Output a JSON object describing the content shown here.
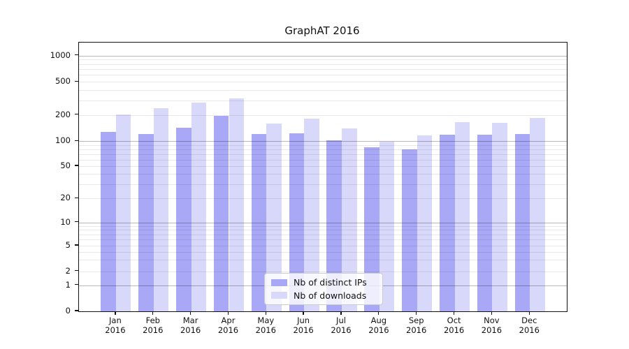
{
  "title": "GraphAT 2016",
  "colors": {
    "distinct_ips": "#a8a8f6",
    "downloads": "#d8d8fa",
    "grid_major": "#b9b9b9",
    "grid_minor": "#e8e8e8",
    "spine": "#111111",
    "legend_border": "#cccccc"
  },
  "chart_data": {
    "type": "bar",
    "title": "GraphAT 2016",
    "categories": [
      "Jan 2016",
      "Feb 2016",
      "Mar 2016",
      "Apr 2016",
      "May 2016",
      "Jun 2016",
      "Jul 2016",
      "Aug 2016",
      "Sep 2016",
      "Oct 2016",
      "Nov 2016",
      "Dec 2016"
    ],
    "series": [
      {
        "name": "Nb of distinct IPs",
        "color": "#a8a8f6",
        "values": [
          127,
          122,
          142,
          196,
          122,
          123,
          103,
          85,
          79,
          118,
          118,
          122
        ]
      },
      {
        "name": "Nb of downloads",
        "color": "#d8d8fa",
        "values": [
          204,
          240,
          280,
          315,
          160,
          183,
          140,
          98,
          116,
          165,
          162,
          185
        ]
      }
    ],
    "xlabel": "",
    "ylabel": "",
    "yscale": "symlog",
    "y_ticks": [
      0,
      1,
      2,
      5,
      10,
      20,
      50,
      100,
      200,
      500,
      1000
    ],
    "ylim": [
      0,
      1400
    ],
    "grid": true,
    "grid_major_at": [
      1,
      10,
      100,
      1000
    ],
    "legend_position": "lower center"
  }
}
